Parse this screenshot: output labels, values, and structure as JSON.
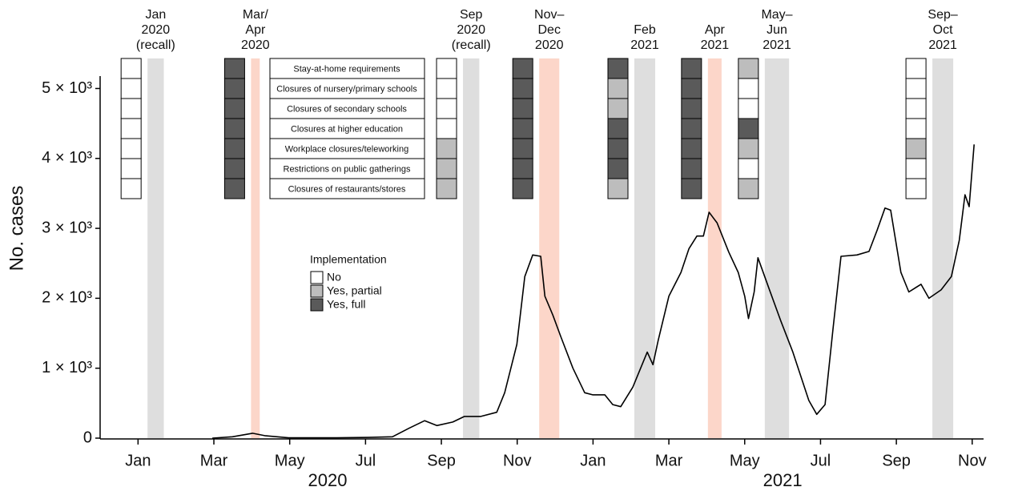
{
  "chart_data": {
    "type": "line",
    "ylabel": "No. cases",
    "color": "#000000",
    "xlim": [
      -1,
      22.3
    ],
    "xticks": [
      {
        "value": 0,
        "label": "Jan"
      },
      {
        "value": 2,
        "label": "Mar"
      },
      {
        "value": 4,
        "label": "May"
      },
      {
        "value": 6,
        "label": "Jul"
      },
      {
        "value": 8,
        "label": "Sep"
      },
      {
        "value": 10,
        "label": "Nov"
      },
      {
        "value": 12,
        "label": "Jan"
      },
      {
        "value": 14,
        "label": "Mar"
      },
      {
        "value": 16,
        "label": "May"
      },
      {
        "value": 18,
        "label": "Jul"
      },
      {
        "value": 20,
        "label": "Sep"
      },
      {
        "value": 22,
        "label": "Nov"
      }
    ],
    "x_groups": [
      "2020",
      "2021"
    ],
    "ylim": [
      0,
      5120
    ],
    "yticks": [
      0,
      {
        "value": 1000,
        "label": "1 × 10³"
      },
      {
        "value": 2000,
        "label": "2 × 10³"
      },
      {
        "value": 3000,
        "label": "3 × 10³"
      },
      {
        "value": 4000,
        "label": "4 × 10³"
      },
      {
        "value": 5000,
        "label": "5 × 10³"
      }
    ],
    "x": [
      1.96,
      2.49,
      3.02,
      3.34,
      3.97,
      5.24,
      6.08,
      6.71,
      7.14,
      7.56,
      7.88,
      8.3,
      8.61,
      9.04,
      9.46,
      9.67,
      9.99,
      10.2,
      10.41,
      10.62,
      10.73,
      10.94,
      11.15,
      11.47,
      11.78,
      11.99,
      12.31,
      12.52,
      12.73,
      13.05,
      13.43,
      13.58,
      13.72,
      14.0,
      14.32,
      14.53,
      14.74,
      14.91,
      15.06,
      15.27,
      15.58,
      15.83,
      16.0,
      16.1,
      16.25,
      16.35,
      16.64,
      16.95,
      17.27,
      17.69,
      17.9,
      18.12,
      18.33,
      18.54,
      18.96,
      19.28,
      19.49,
      19.7,
      19.85,
      20.12,
      20.33,
      20.65,
      20.86,
      21.18,
      21.45,
      21.66,
      21.81,
      21.92,
      22.05
    ],
    "values": [
      0,
      20,
      70,
      35,
      5,
      5,
      10,
      20,
      140,
      250,
      180,
      230,
      310,
      310,
      370,
      650,
      1340,
      2310,
      2620,
      2600,
      2030,
      1760,
      1450,
      1000,
      650,
      620,
      620,
      480,
      450,
      730,
      1230,
      1050,
      1400,
      2030,
      2370,
      2710,
      2890,
      2890,
      3230,
      3080,
      2660,
      2370,
      2030,
      1710,
      2090,
      2580,
      2140,
      1680,
      1230,
      540,
      340,
      480,
      1570,
      2600,
      2620,
      2670,
      2970,
      3290,
      3260,
      2370,
      2090,
      2200,
      2000,
      2120,
      2310,
      2830,
      3480,
      3310,
      4200
    ],
    "measures": [
      "Stay-at-home requirements",
      "Closures of nursery/primary schools",
      "Closures of secondary schools",
      "Closures at higher education",
      "Workplace closures/teleworking",
      "Restrictions on public gatherings",
      "Closures of restaurants/stores"
    ],
    "legend": {
      "title": "Implementation",
      "items": [
        {
          "label": "No",
          "color": "#ffffff"
        },
        {
          "label": "Yes, partial",
          "color": "#bdbdbd"
        },
        {
          "label": "Yes, full",
          "color": "#5a5a5a"
        }
      ]
    },
    "surveys": [
      {
        "label": [
          "Jan",
          "2020",
          "(recall)"
        ],
        "period": [
          0.25,
          0.68
        ],
        "color": "#dedede",
        "status": [
          0,
          0,
          0,
          0,
          0,
          0,
          0
        ]
      },
      {
        "label": [
          "Mar/",
          "Apr",
          "2020"
        ],
        "period": [
          2.98,
          3.21
        ],
        "color": "#fcd6c9",
        "status": [
          2,
          2,
          2,
          2,
          2,
          2,
          2
        ]
      },
      {
        "label": [
          "Sep",
          "2020",
          "(recall)"
        ],
        "period": [
          8.57,
          9.0
        ],
        "color": "#dedede",
        "status": [
          0,
          0,
          0,
          0,
          1,
          1,
          1
        ]
      },
      {
        "label": [
          "Nov–",
          "Dec",
          "2020"
        ],
        "period": [
          10.58,
          11.11
        ],
        "color": "#fcd6c9",
        "status": [
          2,
          2,
          2,
          2,
          2,
          2,
          2
        ]
      },
      {
        "label": [
          "Feb",
          "2021"
        ],
        "period": [
          13.09,
          13.64
        ],
        "color": "#dedede",
        "status": [
          2,
          1,
          1,
          2,
          2,
          2,
          1
        ]
      },
      {
        "label": [
          "Apr",
          "2021"
        ],
        "period": [
          15.03,
          15.39
        ],
        "color": "#fcd6c9",
        "status": [
          2,
          2,
          2,
          2,
          2,
          2,
          2
        ]
      },
      {
        "label": [
          "May–",
          "Jun",
          "2021"
        ],
        "period": [
          16.53,
          17.17
        ],
        "color": "#dedede",
        "status": [
          1,
          0,
          0,
          2,
          1,
          0,
          1
        ]
      },
      {
        "label": [
          "Sep–",
          "Oct",
          "2021"
        ],
        "period": [
          20.95,
          21.5
        ],
        "color": "#dedede",
        "status": [
          0,
          0,
          0,
          0,
          1,
          0,
          0
        ]
      }
    ]
  }
}
